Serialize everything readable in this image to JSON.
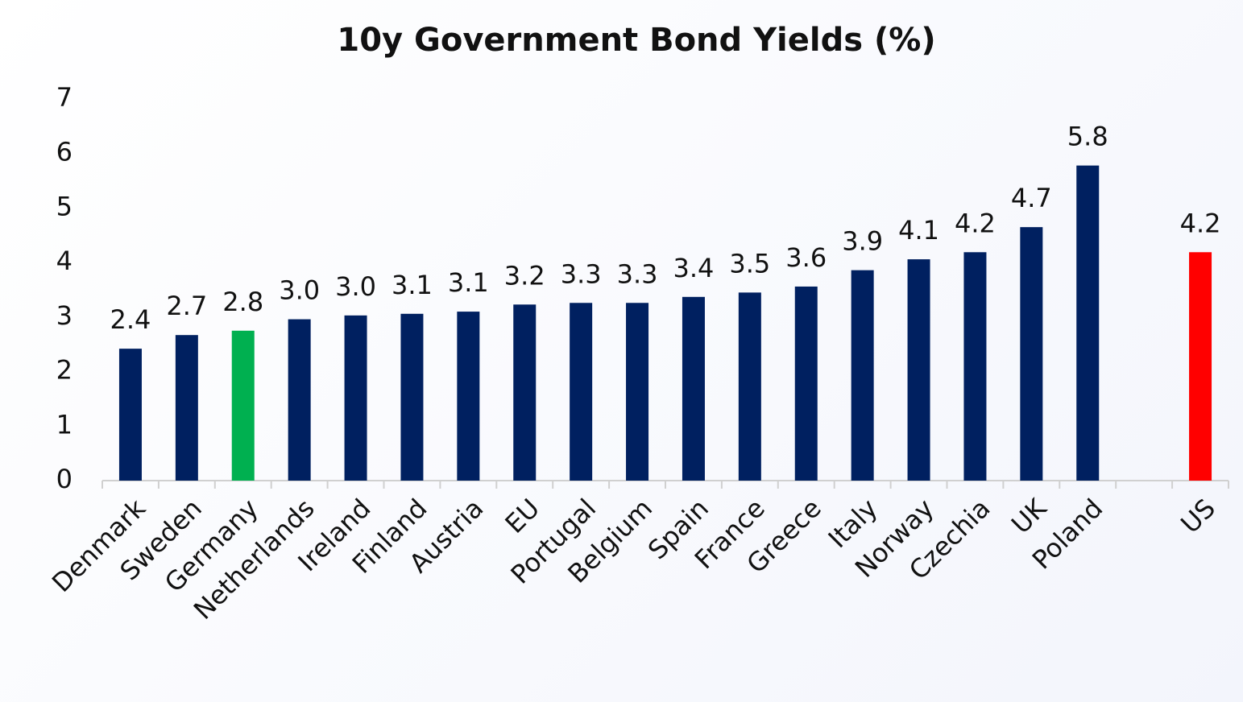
{
  "chart_data": {
    "type": "bar",
    "title": "10y Government Bond Yields (%)",
    "categories": [
      "Denmark",
      "Sweden",
      "Germany",
      "Netherlands",
      "Ireland",
      "Finland",
      "Austria",
      "EU",
      "Portugal",
      "Belgium",
      "Spain",
      "France",
      "Greece",
      "Italy",
      "Norway",
      "Czechia",
      "UK",
      "Poland",
      null,
      "US"
    ],
    "values": [
      2.42,
      2.67,
      2.75,
      2.96,
      3.03,
      3.06,
      3.1,
      3.23,
      3.26,
      3.26,
      3.37,
      3.45,
      3.56,
      3.86,
      4.06,
      4.19,
      4.65,
      5.78,
      null,
      4.19
    ],
    "value_labels": [
      "2.4",
      "2.7",
      "2.8",
      "3.0",
      "3.0",
      "3.1",
      "3.1",
      "3.2",
      "3.3",
      "3.3",
      "3.4",
      "3.5",
      "3.6",
      "3.9",
      "4.1",
      "4.2",
      "4.7",
      "5.8",
      null,
      "4.2"
    ],
    "colors": [
      "#002060",
      "#002060",
      "#00b050",
      "#002060",
      "#002060",
      "#002060",
      "#002060",
      "#002060",
      "#002060",
      "#002060",
      "#002060",
      "#002060",
      "#002060",
      "#002060",
      "#002060",
      "#002060",
      "#002060",
      "#002060",
      null,
      "#ff0000"
    ],
    "ylim": [
      0,
      7
    ],
    "yticks": [
      0,
      1,
      2,
      3,
      4,
      5,
      6,
      7
    ],
    "grid": false
  }
}
